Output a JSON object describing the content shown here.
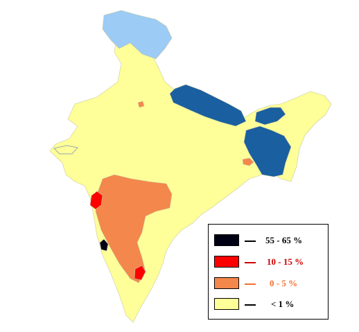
{
  "legend": {
    "items": [
      {
        "label": "55 - 65 %",
        "color": "#000014",
        "text_color": "#000000"
      },
      {
        "label": "10 - 15 %",
        "color": "#ff0000",
        "text_color": "#cc0000"
      },
      {
        "label": "0 - 5 %",
        "color": "#f4874b",
        "text_color": "#f07030"
      },
      {
        "label": "< 1 %",
        "color": "#ffff99",
        "text_color": "#000000"
      }
    ]
  },
  "regions": {
    "kashmir_color": "#9ccbf5",
    "himalaya_belt_color": "#1a5fa0",
    "mainland_color": "#ffff99",
    "south_west_color": "#f4874b",
    "coastal_red_color": "#ff0000",
    "coastal_black_color": "#000014"
  }
}
